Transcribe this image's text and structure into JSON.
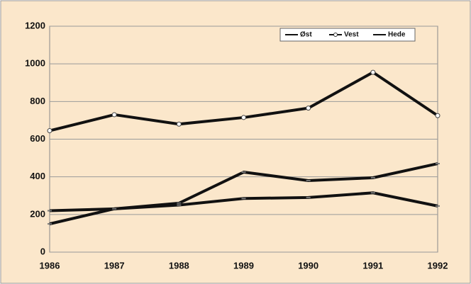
{
  "chart_data": {
    "type": "line",
    "categories": [
      "1986",
      "1987",
      "1988",
      "1989",
      "1990",
      "1991",
      "1992"
    ],
    "series": [
      {
        "name": "Øst",
        "color": "#111111",
        "values": [
          150,
          230,
          260,
          425,
          380,
          395,
          470
        ]
      },
      {
        "name": "Vest",
        "color": "#111111",
        "values": [
          645,
          730,
          680,
          715,
          765,
          955,
          725
        ]
      },
      {
        "name": "Hede",
        "color": "#111111",
        "values": [
          220,
          230,
          250,
          285,
          290,
          315,
          245
        ]
      }
    ],
    "ylim": [
      0,
      1200
    ],
    "yticks": [
      0,
      200,
      400,
      600,
      800,
      1000,
      1200
    ],
    "grid": true,
    "legend": "top-right"
  }
}
